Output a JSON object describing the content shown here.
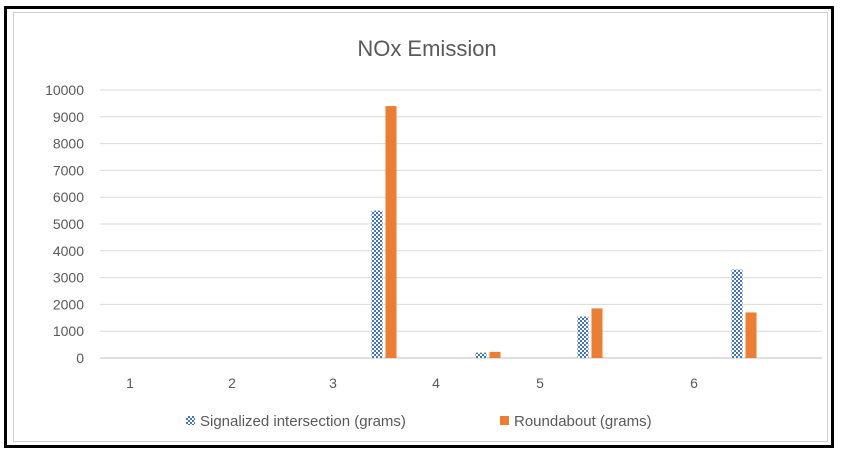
{
  "chart_data": {
    "type": "bar",
    "title": "NOx Emission",
    "xlabel": "",
    "ylabel": "",
    "ylim": [
      0,
      10000
    ],
    "yticks": [
      0,
      1000,
      2000,
      3000,
      4000,
      5000,
      6000,
      7000,
      8000,
      9000,
      10000
    ],
    "categories": [
      "1",
      "2",
      "3",
      "4",
      "5",
      "6"
    ],
    "series": [
      {
        "name": "Signalized intersection (grams)",
        "color": "#4472c4",
        "pattern": "checker",
        "values": [
          null,
          null,
          5500,
          200,
          1550,
          3300
        ]
      },
      {
        "name": "Roundabout (grams)",
        "color": "#ed7d31",
        "pattern": "solid",
        "values": [
          null,
          null,
          9400,
          230,
          1850,
          1700
        ]
      }
    ],
    "grid": true,
    "legend": "bottom"
  }
}
